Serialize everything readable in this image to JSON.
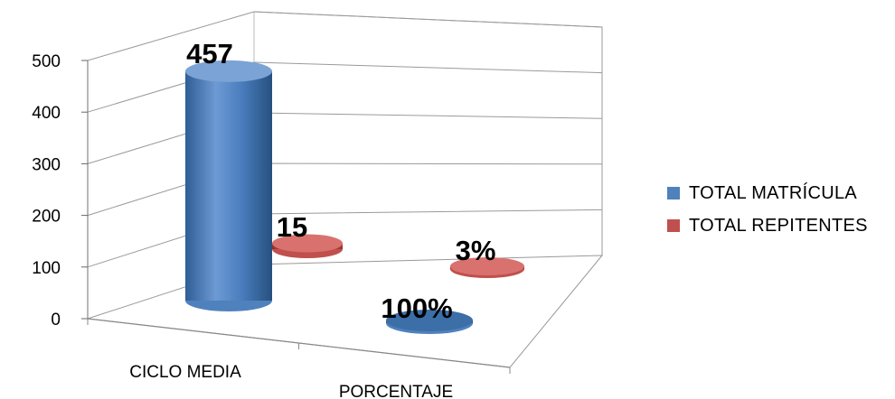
{
  "chart_data": {
    "type": "bar",
    "style": "3d-cylinder",
    "categories": [
      "CICLO MEDIA",
      "PORCENTAJE"
    ],
    "series": [
      {
        "name": "TOTAL MATRÍCULA",
        "color": "#4F81BD",
        "values": [
          457,
          100
        ],
        "data_labels": [
          "457",
          "100%"
        ]
      },
      {
        "name": "TOTAL REPITENTES",
        "color": "#C0504D",
        "values": [
          15,
          3
        ],
        "data_labels": [
          "15",
          "3%"
        ]
      }
    ],
    "ylim": [
      0,
      500
    ],
    "yticks": [
      "0",
      "100",
      "200",
      "300",
      "400",
      "500"
    ],
    "grid": true,
    "legend_position": "right"
  }
}
